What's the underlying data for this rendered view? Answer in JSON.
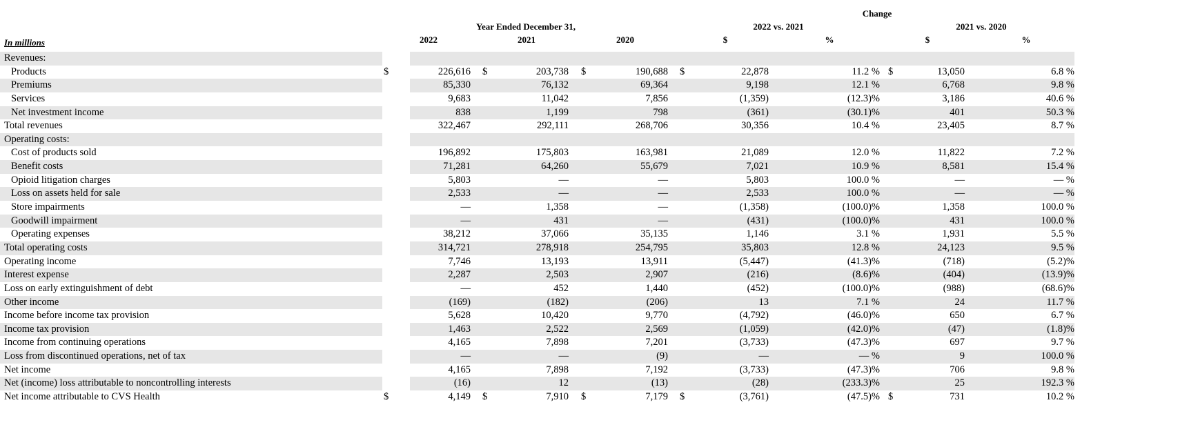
{
  "header": {
    "change": "Change",
    "period": "Year Ended December 31,",
    "cmp1": "2022 vs. 2021",
    "cmp2": "2021 vs. 2020",
    "units": "In millions",
    "y2022": "2022",
    "y2021": "2021",
    "y2020": "2020",
    "dollar": "$",
    "percent": "%"
  },
  "rows": [
    {
      "label": "Revenues:",
      "indent": false,
      "shade": true,
      "cells": [
        "",
        "",
        "",
        "",
        "",
        "",
        ""
      ],
      "dollars": false
    },
    {
      "label": "Products",
      "indent": true,
      "shade": false,
      "cells": [
        "226,616",
        "203,738",
        "190,688",
        "22,878",
        "11.2 %",
        "13,050",
        "6.8 %"
      ],
      "dollars": true
    },
    {
      "label": "Premiums",
      "indent": true,
      "shade": true,
      "cells": [
        "85,330",
        "76,132",
        "69,364",
        "9,198",
        "12.1 %",
        "6,768",
        "9.8 %"
      ],
      "dollars": false
    },
    {
      "label": "Services",
      "indent": true,
      "shade": false,
      "cells": [
        "9,683",
        "11,042",
        "7,856",
        "(1,359)",
        "(12.3)%",
        "3,186",
        "40.6 %"
      ],
      "dollars": false
    },
    {
      "label": "Net investment income",
      "indent": true,
      "shade": true,
      "cells": [
        "838",
        "1,199",
        "798",
        "(361)",
        "(30.1)%",
        "401",
        "50.3 %"
      ],
      "dollars": false
    },
    {
      "label": "Total revenues",
      "indent": false,
      "shade": false,
      "cells": [
        "322,467",
        "292,111",
        "268,706",
        "30,356",
        "10.4 %",
        "23,405",
        "8.7 %"
      ],
      "dollars": false
    },
    {
      "label": "Operating costs:",
      "indent": false,
      "shade": true,
      "cells": [
        "",
        "",
        "",
        "",
        "",
        "",
        ""
      ],
      "dollars": false
    },
    {
      "label": "Cost of products sold",
      "indent": true,
      "shade": false,
      "cells": [
        "196,892",
        "175,803",
        "163,981",
        "21,089",
        "12.0 %",
        "11,822",
        "7.2 %"
      ],
      "dollars": false
    },
    {
      "label": "Benefit costs",
      "indent": true,
      "shade": true,
      "cells": [
        "71,281",
        "64,260",
        "55,679",
        "7,021",
        "10.9 %",
        "8,581",
        "15.4 %"
      ],
      "dollars": false
    },
    {
      "label": "Opioid litigation charges",
      "indent": true,
      "shade": false,
      "cells": [
        "5,803",
        "—",
        "—",
        "5,803",
        "100.0 %",
        "—",
        "— %"
      ],
      "dollars": false
    },
    {
      "label": "Loss on assets held for sale",
      "indent": true,
      "shade": true,
      "cells": [
        "2,533",
        "—",
        "—",
        "2,533",
        "100.0 %",
        "—",
        "— %"
      ],
      "dollars": false
    },
    {
      "label": "Store impairments",
      "indent": true,
      "shade": false,
      "cells": [
        "—",
        "1,358",
        "—",
        "(1,358)",
        "(100.0)%",
        "1,358",
        "100.0 %"
      ],
      "dollars": false
    },
    {
      "label": "Goodwill impairment",
      "indent": true,
      "shade": true,
      "cells": [
        "—",
        "431",
        "—",
        "(431)",
        "(100.0)%",
        "431",
        "100.0 %"
      ],
      "dollars": false
    },
    {
      "label": "Operating expenses",
      "indent": true,
      "shade": false,
      "cells": [
        "38,212",
        "37,066",
        "35,135",
        "1,146",
        "3.1 %",
        "1,931",
        "5.5 %"
      ],
      "dollars": false
    },
    {
      "label": "Total operating costs",
      "indent": false,
      "shade": true,
      "cells": [
        "314,721",
        "278,918",
        "254,795",
        "35,803",
        "12.8 %",
        "24,123",
        "9.5 %"
      ],
      "dollars": false
    },
    {
      "label": "Operating income",
      "indent": false,
      "shade": false,
      "cells": [
        "7,746",
        "13,193",
        "13,911",
        "(5,447)",
        "(41.3)%",
        "(718)",
        "(5.2)%"
      ],
      "dollars": false
    },
    {
      "label": "Interest expense",
      "indent": false,
      "shade": true,
      "cells": [
        "2,287",
        "2,503",
        "2,907",
        "(216)",
        "(8.6)%",
        "(404)",
        "(13.9)%"
      ],
      "dollars": false
    },
    {
      "label": "Loss on early extinguishment of debt",
      "indent": false,
      "shade": false,
      "cells": [
        "—",
        "452",
        "1,440",
        "(452)",
        "(100.0)%",
        "(988)",
        "(68.6)%"
      ],
      "dollars": false
    },
    {
      "label": "Other income",
      "indent": false,
      "shade": true,
      "cells": [
        "(169)",
        "(182)",
        "(206)",
        "13",
        "7.1 %",
        "24",
        "11.7 %"
      ],
      "dollars": false
    },
    {
      "label": "Income before income tax provision",
      "indent": false,
      "shade": false,
      "cells": [
        "5,628",
        "10,420",
        "9,770",
        "(4,792)",
        "(46.0)%",
        "650",
        "6.7 %"
      ],
      "dollars": false
    },
    {
      "label": "Income tax provision",
      "indent": false,
      "shade": true,
      "cells": [
        "1,463",
        "2,522",
        "2,569",
        "(1,059)",
        "(42.0)%",
        "(47)",
        "(1.8)%"
      ],
      "dollars": false
    },
    {
      "label": "Income from continuing operations",
      "indent": false,
      "shade": false,
      "cells": [
        "4,165",
        "7,898",
        "7,201",
        "(3,733)",
        "(47.3)%",
        "697",
        "9.7 %"
      ],
      "dollars": false
    },
    {
      "label": "Loss from discontinued operations, net of tax",
      "indent": false,
      "shade": true,
      "cells": [
        "—",
        "—",
        "(9)",
        "—",
        "— %",
        "9",
        "100.0 %"
      ],
      "dollars": false
    },
    {
      "label": "Net income",
      "indent": false,
      "shade": false,
      "cells": [
        "4,165",
        "7,898",
        "7,192",
        "(3,733)",
        "(47.3)%",
        "706",
        "9.8 %"
      ],
      "dollars": false
    },
    {
      "label": "Net (income) loss attributable to noncontrolling interests",
      "indent": false,
      "shade": true,
      "cells": [
        "(16)",
        "12",
        "(13)",
        "(28)",
        "(233.3)%",
        "25",
        "192.3 %"
      ],
      "dollars": false
    },
    {
      "label": "Net income attributable to CVS Health",
      "indent": false,
      "shade": false,
      "cells": [
        "4,149",
        "7,910",
        "7,179",
        "(3,761)",
        "(47.5)%",
        "731",
        "10.2 %"
      ],
      "dollars": true
    }
  ]
}
